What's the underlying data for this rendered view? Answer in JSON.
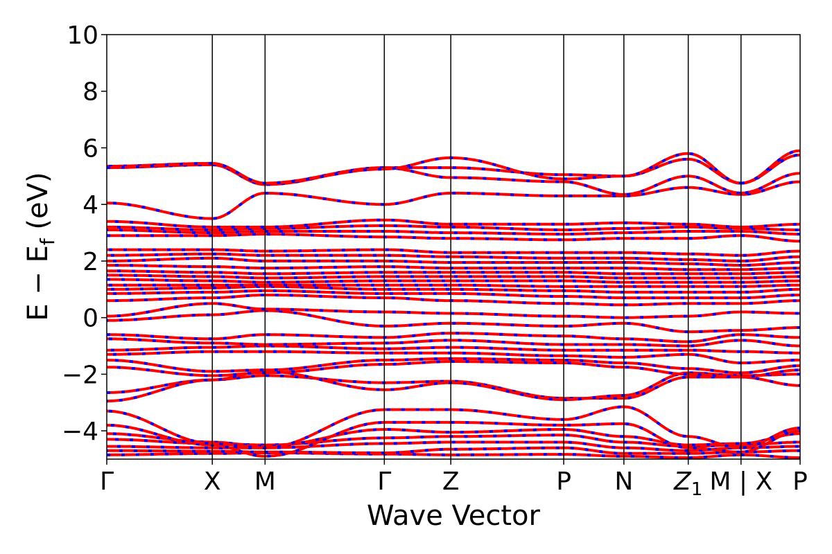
{
  "chart_data": {
    "type": "line",
    "xlabel": "Wave Vector",
    "ylabel_main": "E − E",
    "ylabel_sub": "f",
    "ylabel_unit": " (eV)",
    "ylim": [
      -5,
      10
    ],
    "yticks": [
      -4,
      -2,
      0,
      2,
      4,
      6,
      8,
      10
    ],
    "ytick_labels": [
      "−4",
      "−2",
      "0",
      "2",
      "4",
      "6",
      "8",
      "10"
    ],
    "kpoints": [
      {
        "label": "Γ",
        "x": 0.0
      },
      {
        "label": "X",
        "x": 1.0
      },
      {
        "label": "M",
        "x": 1.5
      },
      {
        "label": "Γ",
        "x": 2.63
      },
      {
        "label": "Z",
        "x": 3.26
      },
      {
        "label": "P",
        "x": 4.33
      },
      {
        "label": "N",
        "x": 4.9
      },
      {
        "label": "Z",
        "x": 5.51,
        "sub": "1"
      },
      {
        "label": "M | X",
        "x": 6.01
      },
      {
        "label": "P",
        "x": 6.57
      }
    ],
    "segment_breaks": [
      6.01
    ],
    "xlim": [
      0,
      6.57
    ],
    "series": [
      {
        "color": "#ff0000",
        "style": "solid"
      },
      {
        "color": "#0000ff",
        "style": "dashed"
      }
    ],
    "bands": [
      [
        -4.85,
        -4.8,
        -4.78,
        -4.82,
        -4.85,
        -4.83,
        -4.9,
        -4.95,
        -4.85,
        -4.95
      ],
      [
        -4.7,
        -4.72,
        -4.75,
        -4.78,
        -4.65,
        -4.6,
        -4.8,
        -4.8,
        -4.75,
        -4.7
      ],
      [
        -4.55,
        -4.6,
        -4.6,
        -4.45,
        -4.4,
        -4.4,
        -4.6,
        -4.7,
        -4.6,
        -4.55
      ],
      [
        -4.3,
        -4.45,
        -4.5,
        -4.25,
        -4.2,
        -4.15,
        -4.4,
        -4.55,
        -4.5,
        -4.4
      ],
      [
        -4.1,
        -4.4,
        -4.55,
        -3.95,
        -4.05,
        -3.95,
        -4.2,
        -4.5,
        -4.45,
        -4.1
      ],
      [
        -3.8,
        -4.5,
        -4.9,
        -3.7,
        -3.7,
        -3.8,
        -3.75,
        -4.6,
        -4.75,
        -4.0
      ],
      [
        -3.3,
        -4.45,
        -4.6,
        -3.25,
        -3.25,
        -3.6,
        -3.15,
        -4.2,
        -4.6,
        -3.9
      ],
      [
        -2.65,
        -2.2,
        -2.05,
        -2.3,
        -2.25,
        -2.85,
        -2.85,
        -2.1,
        -2.1,
        -2.4
      ],
      [
        -2.95,
        -2.2,
        -1.9,
        -2.55,
        -2.3,
        -2.9,
        -2.75,
        -1.95,
        -2.05,
        -2.0
      ],
      [
        -1.75,
        -2.05,
        -1.95,
        -1.65,
        -1.55,
        -1.6,
        -1.75,
        -2.0,
        -2.1,
        -1.85
      ],
      [
        -1.5,
        -1.9,
        -1.85,
        -1.5,
        -1.45,
        -1.5,
        -1.6,
        -1.8,
        -1.95,
        -1.7
      ],
      [
        -1.3,
        -1.2,
        -1.2,
        -1.25,
        -1.25,
        -1.35,
        -1.4,
        -1.3,
        -1.6,
        -1.5
      ],
      [
        -1.15,
        -1.05,
        -1.0,
        -1.1,
        -1.05,
        -1.15,
        -1.15,
        -1.15,
        -1.2,
        -1.25
      ],
      [
        -0.75,
        -0.9,
        -0.95,
        -0.9,
        -0.8,
        -0.95,
        -0.95,
        -1.0,
        -0.8,
        -1.0
      ],
      [
        -0.6,
        -0.75,
        -0.6,
        -0.7,
        -0.55,
        -0.65,
        -0.75,
        -0.85,
        -0.6,
        -0.7
      ],
      [
        -0.1,
        0.1,
        0.25,
        -0.3,
        -0.2,
        -0.3,
        -0.2,
        -0.5,
        -0.45,
        -0.35
      ],
      [
        0.05,
        0.5,
        0.3,
        0.2,
        0.15,
        0.05,
        0.0,
        0.05,
        0.2,
        0.15
      ],
      [
        0.6,
        0.7,
        0.8,
        0.7,
        0.6,
        0.5,
        0.45,
        0.5,
        0.5,
        0.6
      ],
      [
        0.85,
        0.9,
        0.95,
        0.85,
        0.85,
        0.75,
        0.7,
        0.7,
        0.7,
        0.8
      ],
      [
        1.0,
        1.05,
        1.1,
        1.0,
        1.0,
        0.95,
        0.9,
        0.9,
        0.9,
        1.0
      ],
      [
        1.15,
        1.15,
        1.15,
        1.15,
        1.15,
        1.1,
        1.1,
        1.1,
        1.1,
        1.15
      ],
      [
        1.35,
        1.3,
        1.25,
        1.3,
        1.3,
        1.3,
        1.25,
        1.25,
        1.25,
        1.3
      ],
      [
        1.5,
        1.45,
        1.4,
        1.45,
        1.45,
        1.45,
        1.4,
        1.4,
        1.4,
        1.45
      ],
      [
        1.65,
        1.6,
        1.55,
        1.6,
        1.6,
        1.6,
        1.55,
        1.55,
        1.55,
        1.6
      ],
      [
        1.85,
        1.8,
        1.75,
        1.8,
        1.75,
        1.75,
        1.75,
        1.7,
        1.7,
        1.75
      ],
      [
        2.0,
        2.1,
        2.0,
        2.0,
        1.95,
        1.95,
        1.95,
        1.9,
        1.85,
        1.95
      ],
      [
        2.2,
        2.25,
        2.2,
        2.2,
        2.15,
        2.1,
        2.1,
        2.05,
        2.0,
        2.15
      ],
      [
        2.4,
        2.4,
        2.35,
        2.4,
        2.3,
        2.3,
        2.3,
        2.25,
        2.2,
        2.35
      ],
      [
        2.9,
        2.9,
        2.95,
        2.85,
        2.8,
        2.75,
        2.8,
        2.8,
        2.9,
        2.7
      ],
      [
        3.1,
        3.0,
        3.05,
        3.05,
        3.0,
        2.95,
        3.0,
        3.05,
        3.05,
        2.95
      ],
      [
        3.2,
        3.1,
        3.15,
        3.25,
        3.2,
        3.1,
        3.15,
        3.2,
        3.15,
        3.1
      ],
      [
        3.4,
        3.2,
        3.2,
        3.45,
        3.3,
        3.3,
        3.35,
        3.3,
        3.2,
        3.3
      ],
      [
        4.05,
        3.5,
        4.4,
        4.0,
        4.4,
        4.3,
        4.3,
        4.6,
        4.35,
        4.8
      ],
      [
        5.3,
        5.4,
        4.7,
        5.3,
        4.95,
        4.8,
        4.35,
        5.0,
        4.4,
        5.1
      ],
      [
        5.35,
        5.45,
        4.75,
        5.3,
        5.3,
        5.05,
        5.0,
        5.6,
        4.75,
        5.75
      ],
      [
        5.3,
        5.45,
        4.75,
        5.25,
        5.65,
        4.9,
        5.0,
        5.8,
        4.75,
        5.9
      ]
    ]
  }
}
